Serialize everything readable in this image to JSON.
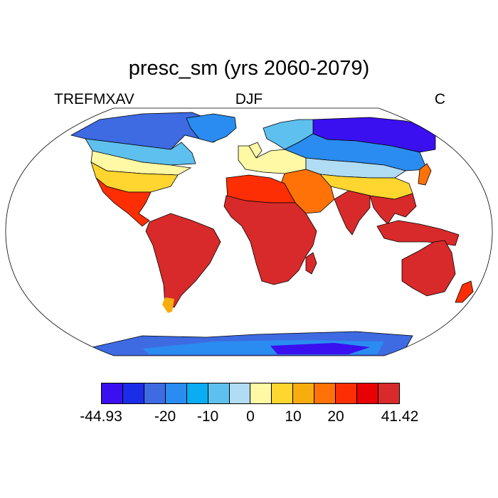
{
  "title": "presc_sm (yrs 2060-2079)",
  "left_label": "TREFMXAV",
  "center_label": "DJF",
  "right_label": "C",
  "colorbar": {
    "colors": [
      "#3a10f0",
      "#1a2ee8",
      "#3e6ae2",
      "#2a8cf0",
      "#0aacf2",
      "#5ec0ee",
      "#b0dcf4",
      "#fff8a4",
      "#ffd530",
      "#f8ad0e",
      "#fe7208",
      "#fe2e04",
      "#e70004",
      "#d82a2a"
    ],
    "labels": [
      "-44.93",
      "-20",
      "-10",
      "0",
      "10",
      "20",
      "41.42"
    ]
  },
  "regions": [
    {
      "name": "antarctica",
      "color": "#3e6ae2"
    },
    {
      "name": "antarctica-interior",
      "color": "#2a8cf0"
    },
    {
      "name": "antarctica-cold",
      "color": "#3a10f0"
    },
    {
      "name": "north-america-arctic",
      "color": "#3e6ae2"
    },
    {
      "name": "canada",
      "color": "#5ec0ee"
    },
    {
      "name": "usa",
      "color": "#ffd530"
    },
    {
      "name": "usa-north",
      "color": "#fff8a4"
    },
    {
      "name": "mexico-central-america",
      "color": "#fe2e04"
    },
    {
      "name": "south-america",
      "color": "#d82a2a"
    },
    {
      "name": "patagonia",
      "color": "#f8ad0e"
    },
    {
      "name": "greenland",
      "color": "#2a8cf0"
    },
    {
      "name": "europe",
      "color": "#fff8a4"
    },
    {
      "name": "scandinavia",
      "color": "#5ec0ee"
    },
    {
      "name": "siberia",
      "color": "#3a10f0"
    },
    {
      "name": "russia",
      "color": "#2a8cf0"
    },
    {
      "name": "central-asia",
      "color": "#b0dcf4"
    },
    {
      "name": "china",
      "color": "#ffd530"
    },
    {
      "name": "middle-east",
      "color": "#fe7208"
    },
    {
      "name": "north-africa",
      "color": "#fe2e04"
    },
    {
      "name": "africa",
      "color": "#d82a2a"
    },
    {
      "name": "india",
      "color": "#d82a2a"
    },
    {
      "name": "southeast-asia",
      "color": "#d82a2a"
    },
    {
      "name": "indonesia",
      "color": "#d82a2a"
    },
    {
      "name": "australia",
      "color": "#d82a2a"
    },
    {
      "name": "new-zealand",
      "color": "#fe2e04"
    },
    {
      "name": "madagascar",
      "color": "#d82a2a"
    },
    {
      "name": "japan",
      "color": "#fe7208"
    },
    {
      "name": "uk",
      "color": "#fff8a4"
    }
  ]
}
